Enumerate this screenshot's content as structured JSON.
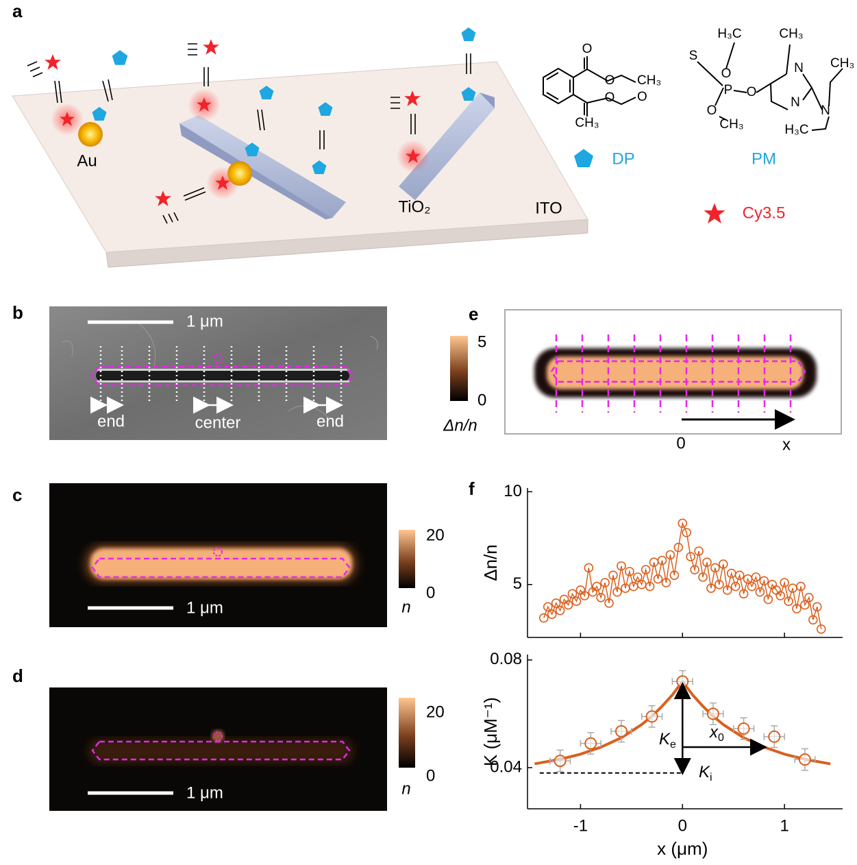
{
  "panel_labels": [
    "a",
    "b",
    "c",
    "d",
    "e",
    "f"
  ],
  "schematic": {
    "au": "Au",
    "tio2": "TiO₂",
    "ito": "ITO",
    "dp": "DP",
    "pm": "PM",
    "cy": "Cy3.5",
    "dp_atoms": [
      "O",
      "O",
      "CH₃",
      "O",
      "O",
      "CH₃"
    ],
    "pm_atoms": [
      "H₃C",
      "CH₃",
      "S",
      "O",
      "N",
      "CH₃",
      "P",
      "O",
      "N",
      "N",
      "O",
      "CH₃",
      "H₃C"
    ]
  },
  "sem": {
    "scale_bar": "1 μm",
    "labels": [
      "end",
      "center",
      "end"
    ]
  },
  "image_c": {
    "scale_bar": "1 μm",
    "colorbar_ticks": [
      20,
      0
    ],
    "colorbar_label": "n"
  },
  "image_d": {
    "scale_bar": "1 μm",
    "colorbar_ticks": [
      20,
      0
    ],
    "colorbar_label": "n"
  },
  "image_e": {
    "colorbar_ticks": [
      5,
      0
    ],
    "colorbar_label": "Δn/n",
    "axis_labels": [
      "0",
      "x"
    ]
  },
  "chart_data": [
    {
      "type": "line",
      "ylabel": "Δn/n",
      "x": [
        -1.36,
        -1.32,
        -1.28,
        -1.24,
        -1.2,
        -1.16,
        -1.12,
        -1.08,
        -1.04,
        -1.0,
        -0.96,
        -0.92,
        -0.88,
        -0.84,
        -0.8,
        -0.76,
        -0.72,
        -0.68,
        -0.64,
        -0.6,
        -0.56,
        -0.52,
        -0.48,
        -0.44,
        -0.4,
        -0.36,
        -0.32,
        -0.28,
        -0.24,
        -0.2,
        -0.16,
        -0.12,
        -0.08,
        -0.04,
        0.0,
        0.04,
        0.08,
        0.12,
        0.16,
        0.2,
        0.24,
        0.28,
        0.32,
        0.36,
        0.4,
        0.44,
        0.48,
        0.52,
        0.56,
        0.6,
        0.64,
        0.68,
        0.72,
        0.76,
        0.8,
        0.84,
        0.88,
        0.92,
        0.96,
        1.0,
        1.04,
        1.08,
        1.12,
        1.16,
        1.2,
        1.24,
        1.28,
        1.32,
        1.36
      ],
      "series": [
        {
          "color": "#d9601f",
          "values": [
            3.2,
            3.8,
            3.4,
            4.0,
            3.6,
            4.2,
            3.9,
            4.5,
            4.1,
            4.7,
            4.4,
            5.9,
            4.6,
            4.9,
            4.3,
            5.1,
            4.0,
            5.5,
            4.6,
            6.0,
            4.8,
            5.7,
            4.9,
            5.4,
            5.0,
            5.8,
            4.9,
            6.2,
            5.3,
            6.3,
            5.1,
            6.6,
            5.5,
            7.0,
            8.3,
            7.8,
            6.5,
            5.8,
            6.8,
            5.4,
            6.2,
            4.8,
            5.9,
            5.0,
            6.1,
            4.7,
            5.6,
            4.9,
            5.5,
            4.5,
            5.3,
            4.9,
            5.4,
            4.6,
            5.2,
            4.2,
            5.0,
            4.7,
            4.4,
            5.1,
            4.1,
            4.8,
            3.7,
            4.9,
            3.9,
            4.3,
            3.1,
            3.8,
            2.6
          ]
        }
      ],
      "xlim": [
        -1.52,
        1.57
      ],
      "ylim": [
        2.15,
        10.2
      ],
      "xticks": [
        -1,
        0,
        1
      ],
      "yticks": [
        5,
        10
      ]
    },
    {
      "type": "scatter",
      "ylabel": "K (μM⁻¹)",
      "xlabel": "x (μm)",
      "x": [
        -1.2,
        -0.9,
        -0.6,
        -0.3,
        0,
        0.3,
        0.6,
        0.9,
        1.2
      ],
      "series": [
        {
          "color": "#d9601f",
          "values": [
            0.0425,
            0.049,
            0.0535,
            0.059,
            0.072,
            0.06,
            0.0545,
            0.0515,
            0.043
          ],
          "errors": [
            0.004,
            0.004,
            0.004,
            0.004,
            0.004,
            0.004,
            0.004,
            0.004,
            0.004
          ],
          "x_errors": [
            0.1,
            0.1,
            0.1,
            0.1,
            0.1,
            0.1,
            0.1,
            0.1,
            0.1
          ]
        }
      ],
      "fit": {
        "x": [
          -1.45,
          -1.2,
          -1.0,
          -0.8,
          -0.6,
          -0.4,
          -0.3,
          -0.2,
          -0.1,
          0,
          0.1,
          0.2,
          0.3,
          0.4,
          0.6,
          0.8,
          1.0,
          1.2,
          1.45
        ],
        "values": [
          0.0414,
          0.0431,
          0.045,
          0.0476,
          0.0511,
          0.056,
          0.0591,
          0.0628,
          0.067,
          0.072,
          0.067,
          0.0628,
          0.0591,
          0.056,
          0.0511,
          0.0476,
          0.045,
          0.0431,
          0.0414
        ]
      },
      "ki_line": {
        "x": [
          -1.4,
          0
        ],
        "y": 0.038
      },
      "annotations": [
        {
          "text": "K",
          "sub": "e"
        },
        {
          "text": "x",
          "sub": "0"
        },
        {
          "text": "K",
          "sub": "i"
        }
      ],
      "xlim": [
        -1.52,
        1.57
      ],
      "ylim": [
        0.0247,
        0.082
      ],
      "xticks": [
        -1,
        0,
        1
      ],
      "yticks": [
        0.04,
        0.08
      ]
    }
  ]
}
